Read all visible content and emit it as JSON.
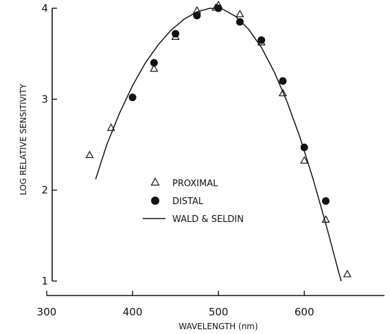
{
  "chart_data": {
    "type": "scatter",
    "title": "",
    "xlabel": "WAVELENGTH (nm)",
    "ylabel": "LOG RELATIVE SENSITIVITY",
    "xlim": [
      300,
      675
    ],
    "ylim": [
      1,
      4
    ],
    "x_ticks": [
      300,
      400,
      500,
      600
    ],
    "y_ticks": [
      1,
      2,
      3,
      4
    ],
    "grid": false,
    "legend_position": "center",
    "series": [
      {
        "name": "PROXIMAL",
        "marker": "open-triangle",
        "points": [
          {
            "x": 350,
            "y": 2.38
          },
          {
            "x": 375,
            "y": 2.68
          },
          {
            "x": 425,
            "y": 3.33
          },
          {
            "x": 450,
            "y": 3.68
          },
          {
            "x": 475,
            "y": 3.97
          },
          {
            "x": 497,
            "y": 4.0
          },
          {
            "x": 500,
            "y": 4.03
          },
          {
            "x": 525,
            "y": 3.93
          },
          {
            "x": 550,
            "y": 3.62
          },
          {
            "x": 575,
            "y": 3.06
          },
          {
            "x": 600,
            "y": 2.32
          },
          {
            "x": 625,
            "y": 1.67
          },
          {
            "x": 650,
            "y": 1.07
          }
        ]
      },
      {
        "name": "DISTAL",
        "marker": "filled-circle",
        "points": [
          {
            "x": 400,
            "y": 3.02
          },
          {
            "x": 425,
            "y": 3.4
          },
          {
            "x": 450,
            "y": 3.72
          },
          {
            "x": 475,
            "y": 3.92
          },
          {
            "x": 500,
            "y": 4.0
          },
          {
            "x": 525,
            "y": 3.85
          },
          {
            "x": 550,
            "y": 3.65
          },
          {
            "x": 575,
            "y": 3.2
          },
          {
            "x": 600,
            "y": 2.47
          },
          {
            "x": 625,
            "y": 1.88
          }
        ]
      },
      {
        "name": "WALD & SELDIN",
        "marker": "line",
        "points": [
          {
            "x": 357,
            "y": 2.12
          },
          {
            "x": 370,
            "y": 2.5
          },
          {
            "x": 385,
            "y": 2.85
          },
          {
            "x": 400,
            "y": 3.15
          },
          {
            "x": 415,
            "y": 3.4
          },
          {
            "x": 430,
            "y": 3.6
          },
          {
            "x": 445,
            "y": 3.76
          },
          {
            "x": 460,
            "y": 3.88
          },
          {
            "x": 475,
            "y": 3.96
          },
          {
            "x": 490,
            "y": 4.0
          },
          {
            "x": 505,
            "y": 3.99
          },
          {
            "x": 520,
            "y": 3.91
          },
          {
            "x": 535,
            "y": 3.77
          },
          {
            "x": 550,
            "y": 3.57
          },
          {
            "x": 565,
            "y": 3.3
          },
          {
            "x": 580,
            "y": 2.97
          },
          {
            "x": 595,
            "y": 2.58
          },
          {
            "x": 610,
            "y": 2.13
          },
          {
            "x": 625,
            "y": 1.63
          },
          {
            "x": 640,
            "y": 1.1
          },
          {
            "x": 643,
            "y": 1.0
          }
        ]
      }
    ],
    "legend": [
      {
        "label": "PROXIMAL",
        "marker": "open-triangle"
      },
      {
        "label": "DISTAL",
        "marker": "filled-circle"
      },
      {
        "label": "WALD & SELDIN",
        "marker": "line"
      }
    ]
  }
}
